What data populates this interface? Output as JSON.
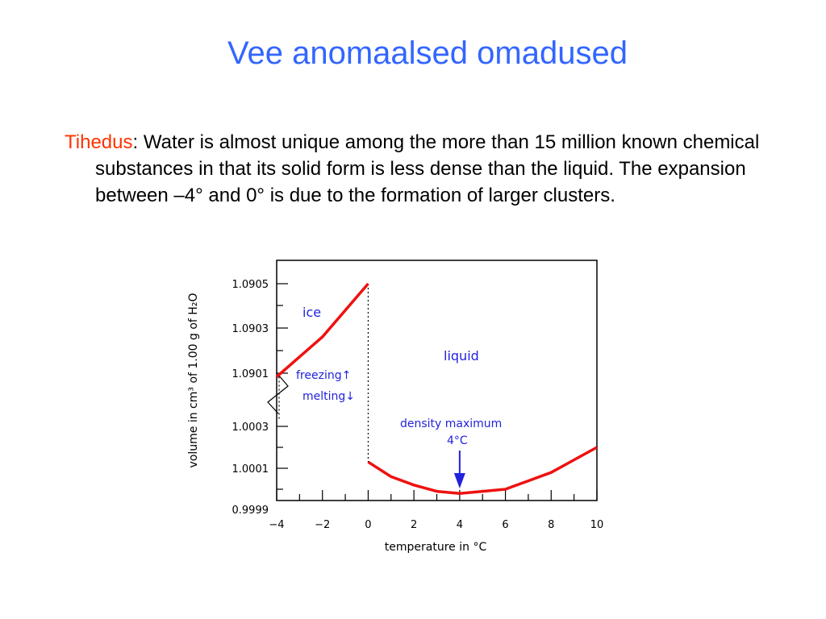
{
  "slide": {
    "title": "Vee anomaalsed omadused",
    "term": "Tihedus",
    "colon": ":",
    "text": " Water is almost unique among the more than 15 million known chemical substances in that its solid form is less dense than the liquid. The expansion between –4° and 0° is due to the formation of larger clusters."
  },
  "colors": {
    "title": "#3366ff",
    "term": "#ff3300",
    "curve": "#ee1111",
    "annotation": "#2222dd"
  },
  "chart_data": {
    "type": "line",
    "xlabel": "temperature in °C",
    "ylabel": "volume in cm³ of 1.00 g of H₂O",
    "xlim": [
      -4,
      10
    ],
    "xticks": [
      "−4",
      "−2",
      "0",
      "2",
      "4",
      "6",
      "8",
      "10"
    ],
    "yticks": [
      "1.0905",
      "1.0903",
      "1.0901",
      "1.0003",
      "1.0001",
      "0.9999"
    ],
    "broken_axis": true,
    "series": [
      {
        "name": "ice",
        "points": [
          [
            -4,
            1.09008
          ],
          [
            -2,
            1.09026
          ],
          [
            0,
            1.0905
          ]
        ]
      },
      {
        "name": "liquid",
        "points": [
          [
            0,
            1.00013
          ],
          [
            1,
            1.00006
          ],
          [
            2,
            1.00002
          ],
          [
            3,
            0.99999
          ],
          [
            4,
            0.99998
          ],
          [
            5,
            0.99999
          ],
          [
            6,
            1.0
          ],
          [
            7,
            1.00004
          ],
          [
            8,
            1.00008
          ],
          [
            9,
            1.00014
          ],
          [
            10,
            1.0002
          ]
        ]
      }
    ],
    "annotations": {
      "ice": "ice",
      "liquid": "liquid",
      "freezing": "freezing↑",
      "melting": "melting↓",
      "density_max_line1": "density maximum",
      "density_max_line2": "4°C"
    }
  }
}
